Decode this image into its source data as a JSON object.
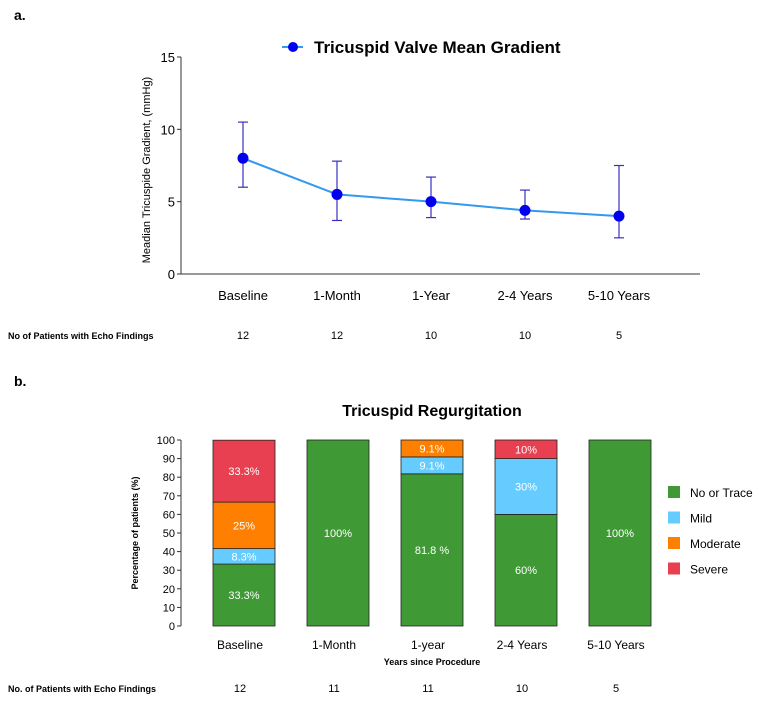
{
  "chart_data": [
    {
      "panel_label": "a.",
      "type": "line",
      "title": "Tricuspid Valve Mean Gradient",
      "ylabel": "Meadian Tricuspide Gradient, (mmHg)",
      "ylim": [
        0,
        15
      ],
      "yticks": [
        0,
        5,
        10,
        15
      ],
      "categories": [
        "Baseline",
        "1-Month",
        "1-Year",
        "2-4 Years",
        "5-10 Years"
      ],
      "series": [
        {
          "name": "Tricuspid Valve Mean Gradient",
          "values": [
            8,
            5.5,
            5,
            4.4,
            4
          ],
          "error_low": [
            6,
            3.7,
            3.9,
            3.8,
            2.5
          ],
          "error_high": [
            10.5,
            7.8,
            6.7,
            5.8,
            7.5
          ]
        }
      ],
      "legend": "top",
      "grid": false,
      "patients_label": "No  of Patients with Echo Findings",
      "patients": [
        "12",
        "12",
        "10",
        "10",
        "5"
      ],
      "colors": {
        "line": "#3399ee",
        "marker": "#0000ee",
        "error": "#3a2fc0"
      }
    },
    {
      "panel_label": "b.",
      "type": "bar",
      "stacked": true,
      "title": "Tricuspid Regurgitation",
      "ylabel": "Percentage of patients (%)",
      "xlabel": "Years since Procedure",
      "ylim": [
        0,
        100
      ],
      "yticks": [
        0,
        10,
        20,
        30,
        40,
        50,
        60,
        70,
        80,
        90,
        100
      ],
      "categories": [
        "Baseline",
        "1-Month",
        "1-year",
        "2-4 Years",
        "5-10 Years"
      ],
      "series": [
        {
          "name": "No or Trace",
          "color": "#3f9a35",
          "values": [
            33.3,
            100,
            81.8,
            60,
            100
          ],
          "labels": [
            "33.3%",
            "100%",
            "81.8 %",
            "60%",
            "100%"
          ]
        },
        {
          "name": "Mild",
          "color": "#66ccff",
          "values": [
            8.3,
            0,
            9.1,
            30,
            0
          ],
          "labels": [
            "8.3%",
            "",
            "9.1%",
            "30%",
            ""
          ]
        },
        {
          "name": "Moderate",
          "color": "#ff8000",
          "values": [
            25,
            0,
            9.1,
            0,
            0
          ],
          "labels": [
            "25%",
            "",
            "9.1%",
            "",
            ""
          ]
        },
        {
          "name": "Severe",
          "color": "#e84050",
          "values": [
            33.3,
            0,
            0,
            10,
            0
          ],
          "labels": [
            "33.3%",
            "",
            "",
            "10%",
            ""
          ]
        }
      ],
      "legend": "right",
      "grid": false,
      "patients_label": "No. of Patients with Echo Findings",
      "patients": [
        "12",
        "11",
        "11",
        "10",
        "5"
      ]
    }
  ]
}
